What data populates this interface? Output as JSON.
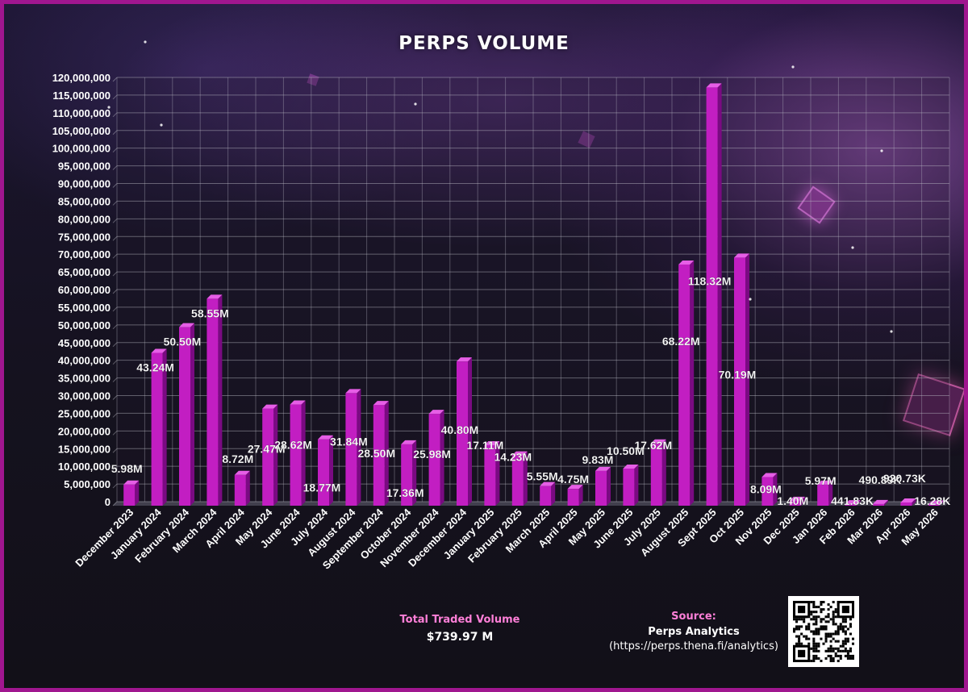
{
  "title": "PERPS VOLUME",
  "footer": {
    "total_label": "Total Traded Volume",
    "total_value": "$739.97 M",
    "source_label": "Source:",
    "source_name": "Perps Analytics",
    "source_url": "(https://perps.thena.fi/analytics)"
  },
  "colors": {
    "bar": "#c21ec2",
    "bar_side": "#7a0a82",
    "bar_top": "#e65ee6",
    "frame": "#a0168f",
    "accent_text": "#ff7fd8"
  },
  "chart_data": {
    "type": "bar",
    "title": "PERPS VOLUME",
    "xlabel": "",
    "ylabel": "",
    "ylim": [
      0,
      120000000
    ],
    "ytick_step": 5000000,
    "yticks": [
      "0",
      "5,000,000",
      "10,000,000",
      "15,000,000",
      "20,000,000",
      "25,000,000",
      "30,000,000",
      "35,000,000",
      "40,000,000",
      "45,000,000",
      "50,000,000",
      "55,000,000",
      "60,000,000",
      "65,000,000",
      "70,000,000",
      "75,000,000",
      "80,000,000",
      "85,000,000",
      "90,000,000",
      "95,000,000",
      "100,000,000",
      "105,000,000",
      "110,000,000",
      "115,000,000",
      "120,000,000"
    ],
    "grid": true,
    "legend": "none",
    "categories": [
      "December 2023",
      "January 2024",
      "February 2024",
      "March 2024",
      "April 2024",
      "May 2024",
      "June 2024",
      "July 2024",
      "August 2024",
      "September 2024",
      "October 2024",
      "November 2024",
      "December 2024",
      "January 2025",
      "February 2025",
      "March 2025",
      "April 2025",
      "May 2025",
      "June 2025",
      "July 2025",
      "August 2025",
      "Sept 2025",
      "Oct 2025",
      "Nov 2025",
      "Dec 2025",
      "Jan 2026",
      "Feb 2026",
      "Mar 2026",
      "Apr 2026",
      "May 2026"
    ],
    "values": [
      5980000,
      43240000,
      50500000,
      58550000,
      8720000,
      27470000,
      28620000,
      18770000,
      31840000,
      28500000,
      17360000,
      25980000,
      40800000,
      17110000,
      14230000,
      5550000,
      4750000,
      9830000,
      10500000,
      17620000,
      68220000,
      118320000,
      70190000,
      8090000,
      1400000,
      5970000,
      441830,
      490890,
      920730,
      16280
    ],
    "labels": [
      "5.98M",
      "43.24M",
      "50.50M",
      "58.55M",
      "8.72M",
      "27.47M",
      "28.62M",
      "18.77M",
      "31.84M",
      "28.50M",
      "17.36M",
      "25.98M",
      "40.80M",
      "17.11M",
      "14.23M",
      "5.55M",
      "4.75M",
      "9.83M",
      "10.50M",
      "17.62M",
      "68.22M",
      "118.32M",
      "70.19M",
      "8.09M",
      "1.40M",
      "5.97M",
      "441.83K",
      "490.89K",
      "920.73K",
      "16.28K"
    ]
  }
}
